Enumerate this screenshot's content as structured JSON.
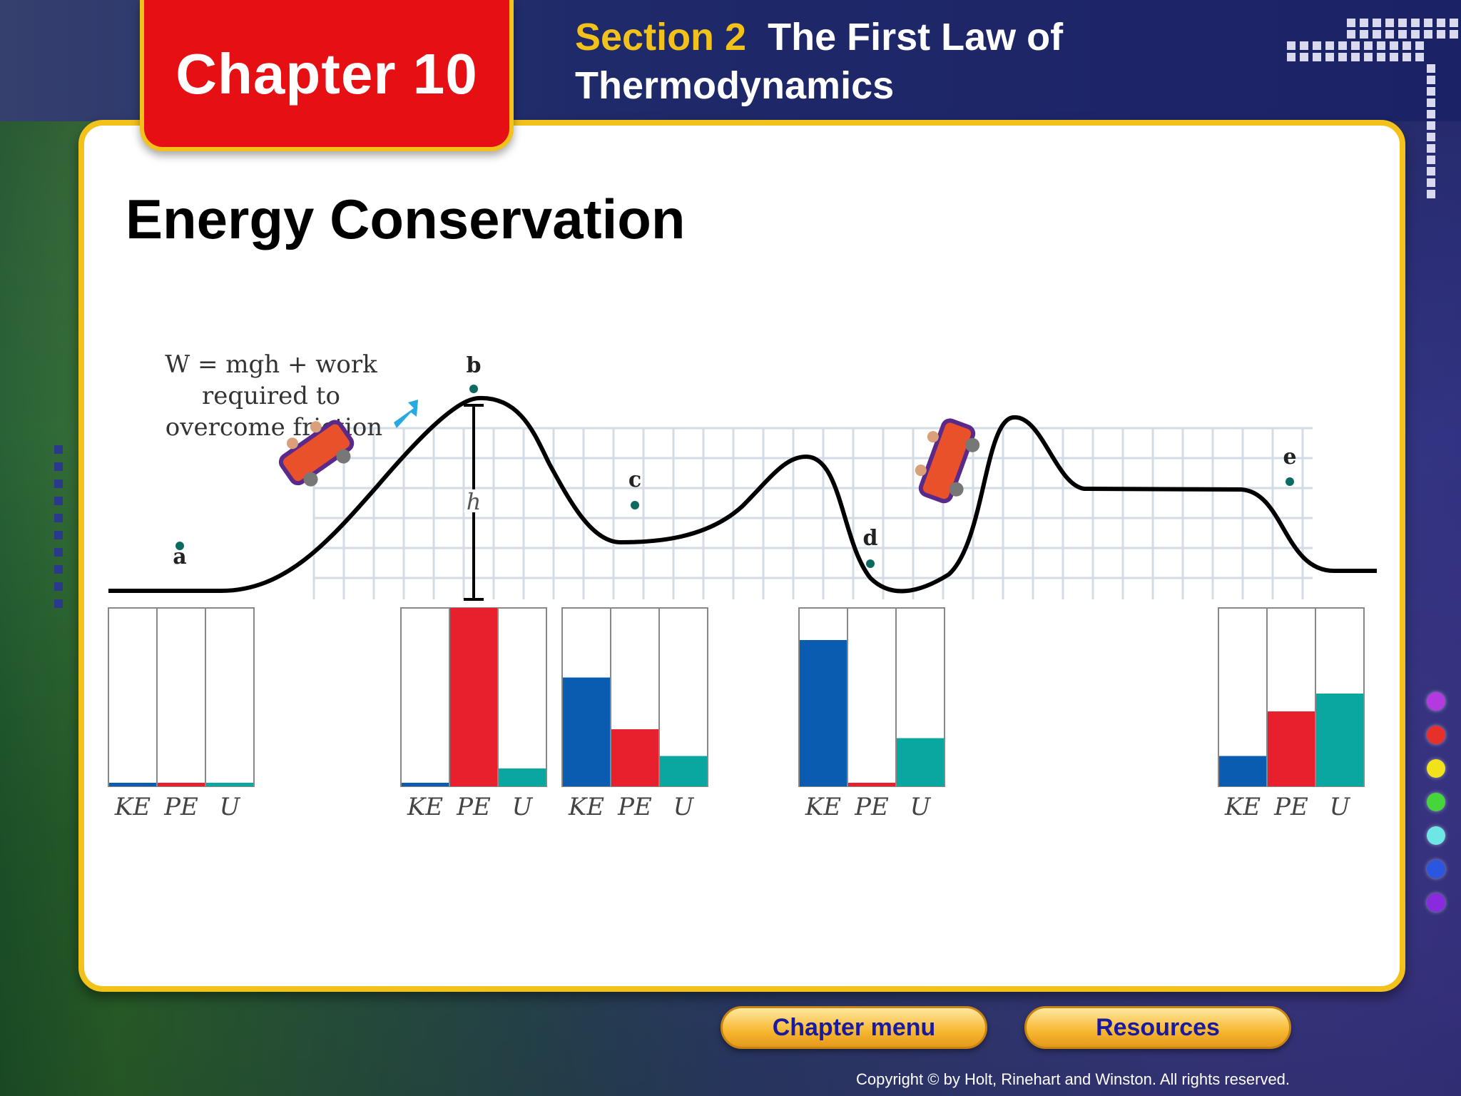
{
  "header": {
    "chapter_label": "Chapter 10",
    "section_label": "Section 2",
    "section_title_line1": "The First Law of",
    "section_title_line2": "Thermodynamics"
  },
  "slide": {
    "title": "Energy Conservation"
  },
  "diagram": {
    "annotation_line1": "W = mgh + work",
    "annotation_line2": "required to",
    "annotation_line3": "overcome friction",
    "height_label": "h",
    "points": [
      "a",
      "b",
      "c",
      "d",
      "e"
    ],
    "bar_labels": [
      "KE",
      "PE",
      "U"
    ],
    "bar_groups": [
      {
        "point": "a",
        "KE": 0.02,
        "PE": 0.02,
        "U": 0.02
      },
      {
        "point": "b",
        "KE": 0.02,
        "PE": 1.0,
        "U": 0.1
      },
      {
        "point": "c",
        "KE": 0.61,
        "PE": 0.32,
        "U": 0.17
      },
      {
        "point": "d",
        "KE": 0.82,
        "PE": 0.02,
        "U": 0.27
      },
      {
        "point": "e",
        "KE": 0.17,
        "PE": 0.42,
        "U": 0.52
      }
    ],
    "colors": {
      "KE": "#0a5cb0",
      "PE": "#e81f2c",
      "U": "#0aa6a0"
    }
  },
  "buttons": {
    "chapter_menu": "Chapter menu",
    "resources": "Resources"
  },
  "footer": {
    "copyright": "Copyright © by Holt, Rinehart and Winston. All rights reserved."
  }
}
